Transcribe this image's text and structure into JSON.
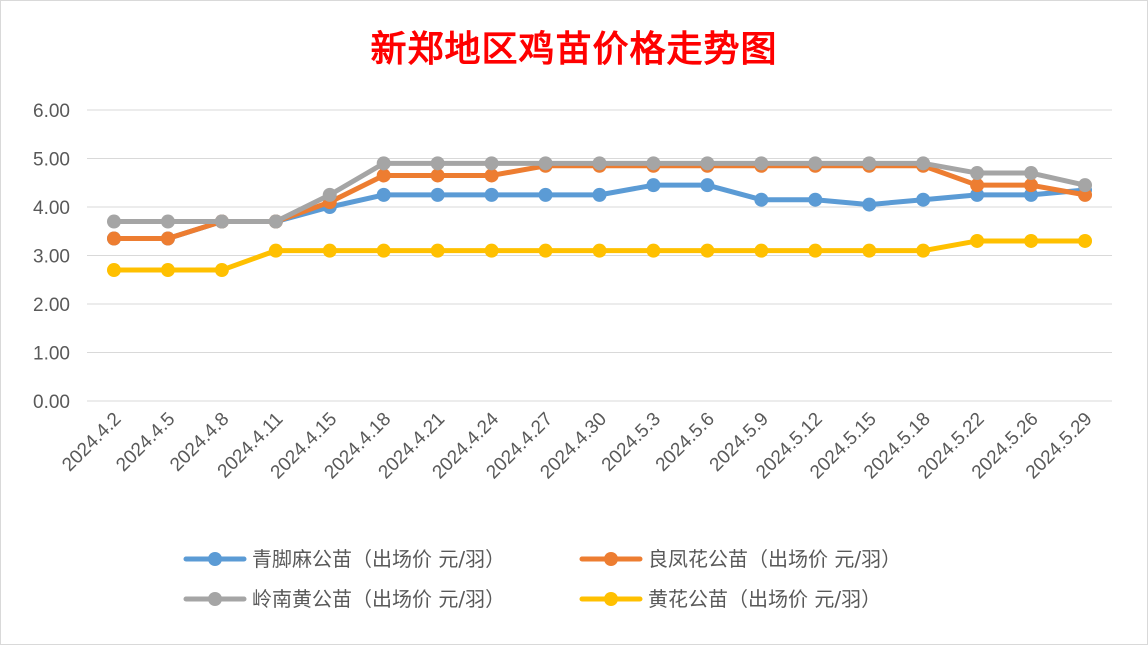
{
  "chart_data": {
    "type": "line",
    "title": "新郑地区鸡苗价格走势图",
    "categories": [
      "2024.4.2",
      "2024.4.5",
      "2024.4.8",
      "2024.4.11",
      "2024.4.15",
      "2024.4.18",
      "2024.4.21",
      "2024.4.24",
      "2024.4.27",
      "2024.4.30",
      "2024.5.3",
      "2024.5.6",
      "2024.5.9",
      "2024.5.12",
      "2024.5.15",
      "2024.5.18",
      "2024.5.22",
      "2024.5.26",
      "2024.5.29"
    ],
    "ylim": [
      0,
      6
    ],
    "yticks": [
      "0.00",
      "1.00",
      "2.00",
      "3.00",
      "4.00",
      "5.00",
      "6.00"
    ],
    "grid": true,
    "legend_position": "bottom",
    "series": [
      {
        "name": "青脚麻公苗（出场价 元/羽）",
        "color": "#5b9bd5",
        "values": [
          3.35,
          3.35,
          3.7,
          3.7,
          4.0,
          4.25,
          4.25,
          4.25,
          4.25,
          4.25,
          4.45,
          4.45,
          4.15,
          4.15,
          4.05,
          4.15,
          4.25,
          4.25,
          4.35
        ]
      },
      {
        "name": "良凤花公苗（出场价 元/羽）",
        "color": "#ed7d31",
        "values": [
          3.35,
          3.35,
          3.7,
          3.7,
          4.1,
          4.65,
          4.65,
          4.65,
          4.85,
          4.85,
          4.85,
          4.85,
          4.85,
          4.85,
          4.85,
          4.85,
          4.45,
          4.45,
          4.25
        ]
      },
      {
        "name": "岭南黄公苗（出场价 元/羽）",
        "color": "#a5a5a5",
        "values": [
          3.7,
          3.7,
          3.7,
          3.7,
          4.25,
          4.9,
          4.9,
          4.9,
          4.9,
          4.9,
          4.9,
          4.9,
          4.9,
          4.9,
          4.9,
          4.9,
          4.7,
          4.7,
          4.45
        ]
      },
      {
        "name": "黄花公苗（出场价 元/羽）",
        "color": "#ffc000",
        "values": [
          2.7,
          2.7,
          2.7,
          3.1,
          3.1,
          3.1,
          3.1,
          3.1,
          3.1,
          3.1,
          3.1,
          3.1,
          3.1,
          3.1,
          3.1,
          3.1,
          3.3,
          3.3,
          3.3
        ]
      }
    ]
  }
}
